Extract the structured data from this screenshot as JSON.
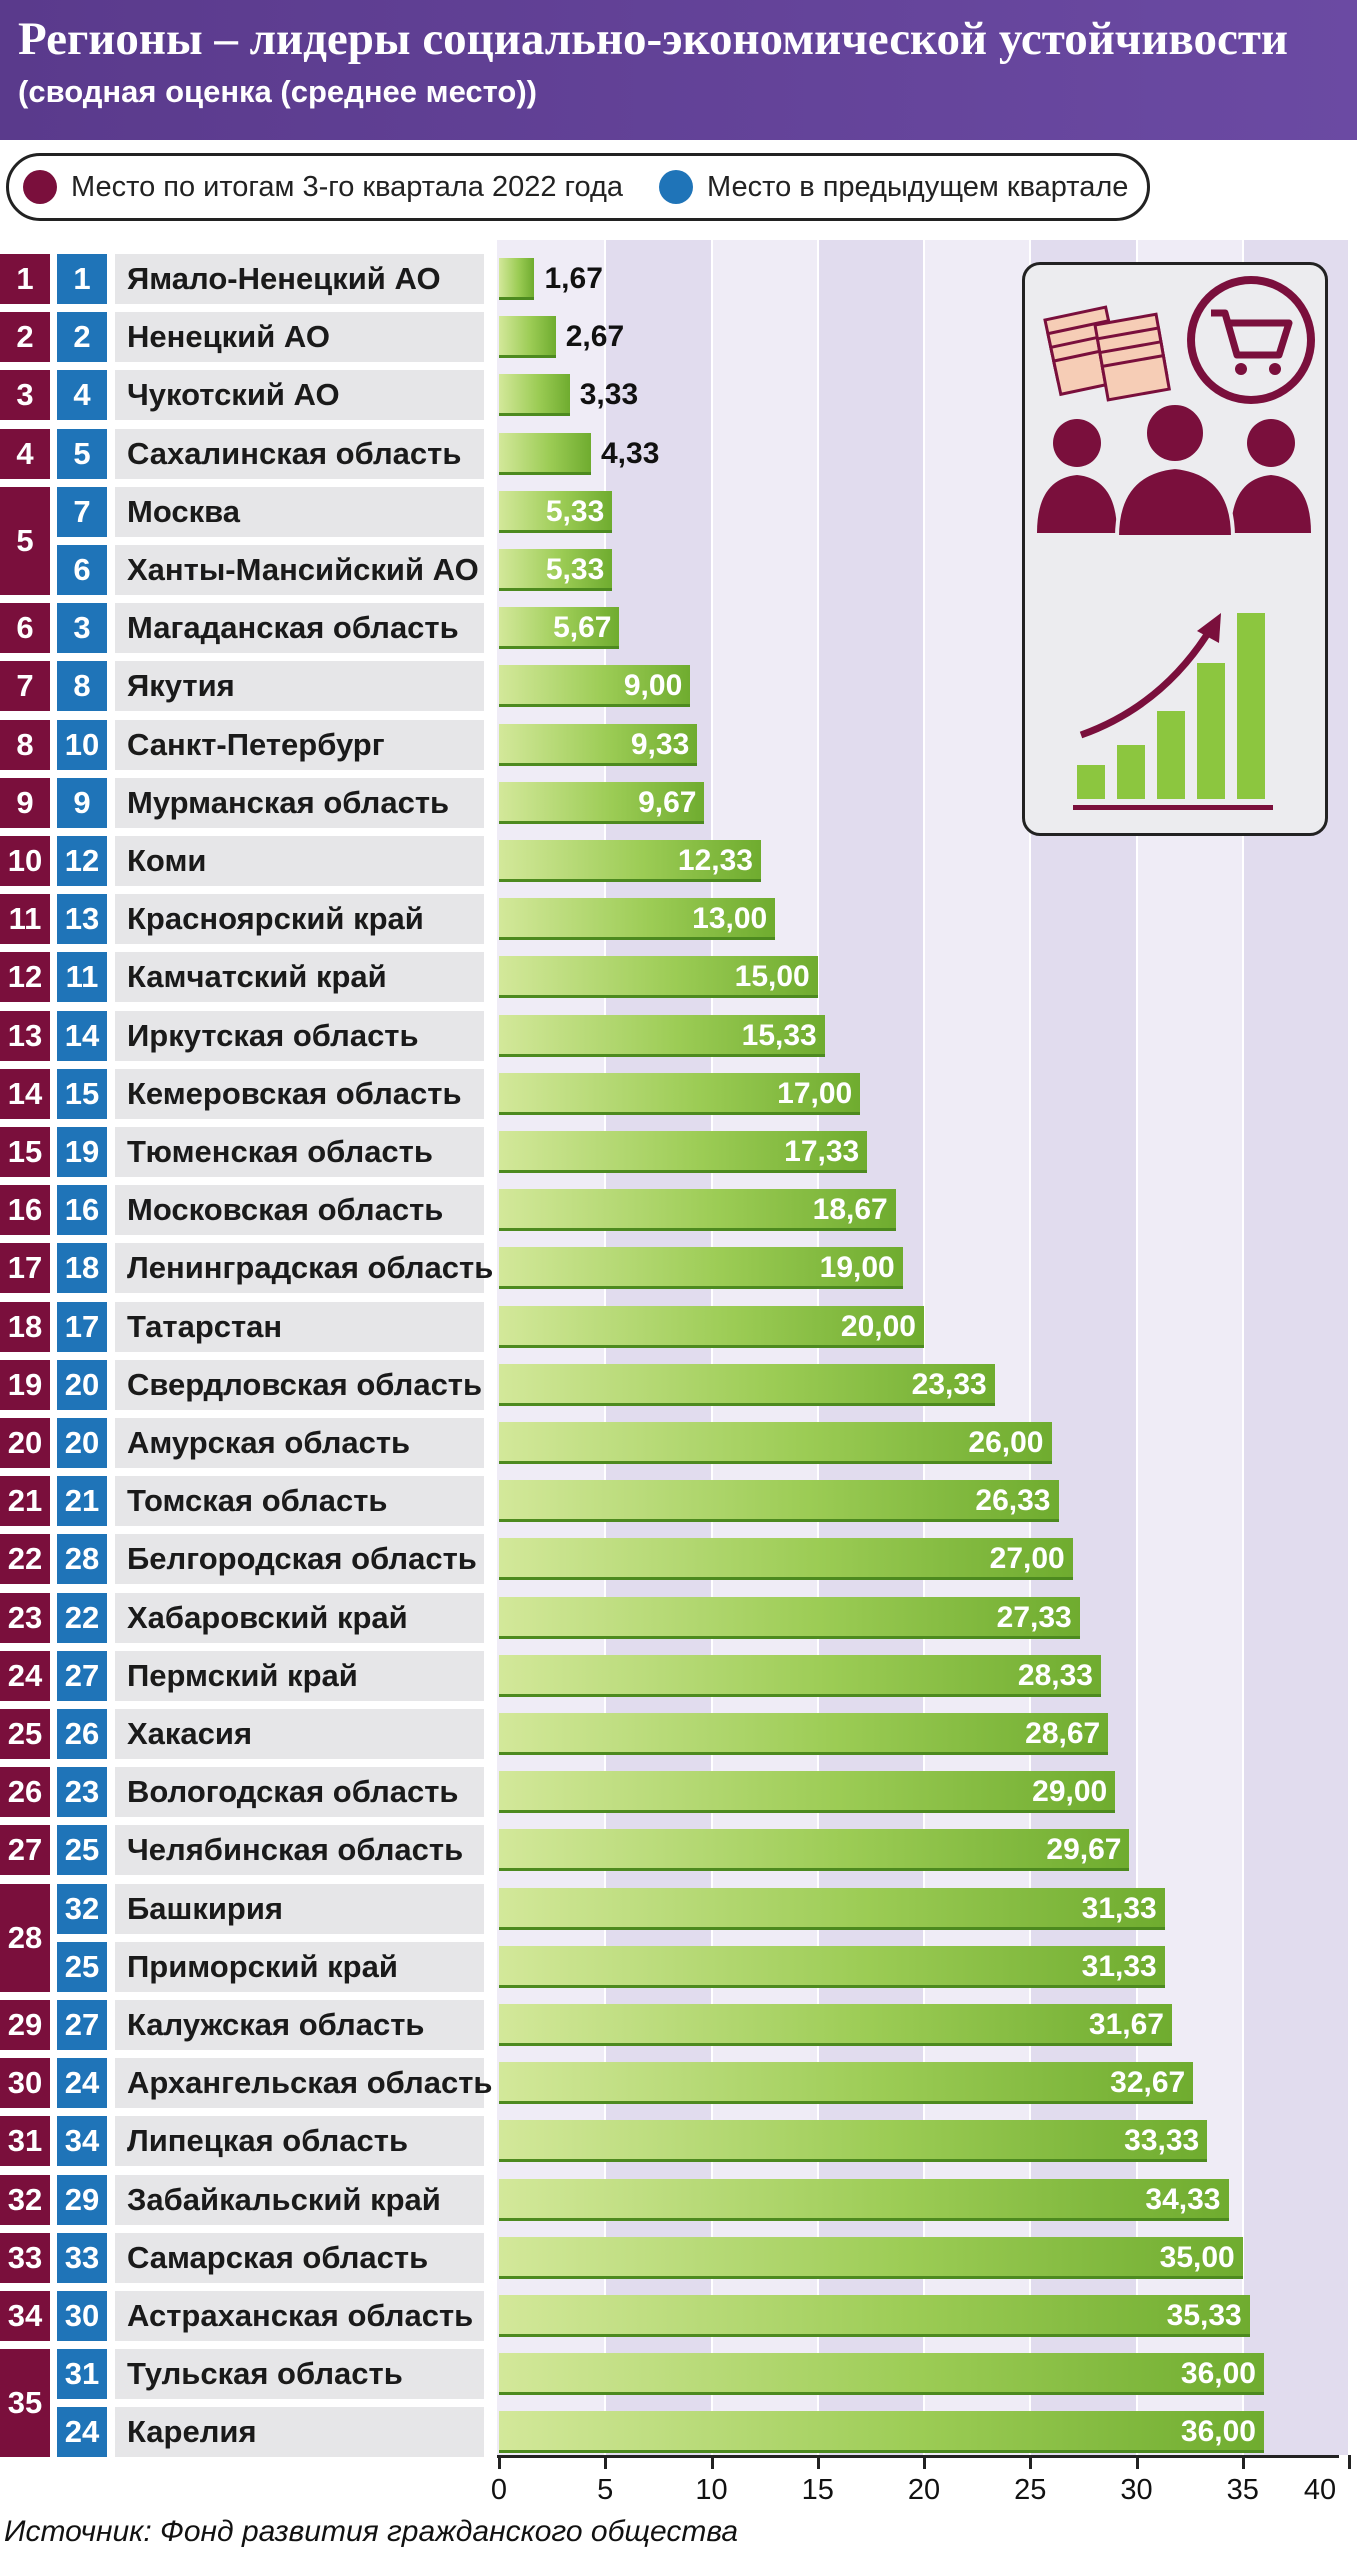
{
  "header": {
    "title": "Регионы – лидеры социально-экономической устойчивости",
    "subtitle": "(сводная оценка (среднее место))"
  },
  "legend": {
    "current": {
      "label": "Место по итогам 3-го квартала 2022 года",
      "color": "#7a0f3c"
    },
    "previous": {
      "label": "Место в предыдущем квартале",
      "color": "#1f74b8"
    }
  },
  "source": "Источник: Фонд развития гражданского общества",
  "icons": [
    "money-stack-icon",
    "shopping-cart-icon",
    "people-icon",
    "growth-chart-icon"
  ],
  "colors": {
    "bar_light": "#d3e89a",
    "bar_dark": "#6fac2f",
    "current_rank": "#7a0f3c",
    "previous_rank": "#1f74b8",
    "plot_bg": "#efecf6"
  },
  "chart_data": {
    "type": "bar",
    "orientation": "horizontal",
    "xlim": [
      0,
      40
    ],
    "xticks": [
      "0",
      "5",
      "10",
      "15",
      "20",
      "25",
      "30",
      "35",
      "40"
    ],
    "rows": [
      {
        "cur": "1",
        "prev": "1",
        "name": "Ямало-Ненецкий АО",
        "value": 1.67,
        "label": "1,67"
      },
      {
        "cur": "2",
        "prev": "2",
        "name": "Ненецкий АО",
        "value": 2.67,
        "label": "2,67"
      },
      {
        "cur": "3",
        "prev": "4",
        "name": "Чукотский АО",
        "value": 3.33,
        "label": "3,33"
      },
      {
        "cur": "4",
        "prev": "5",
        "name": "Сахалинская область",
        "value": 4.33,
        "label": "4,33"
      },
      {
        "cur": "5",
        "prev": "7",
        "name": "Москва",
        "value": 5.33,
        "label": "5,33"
      },
      {
        "cur": "5",
        "prev": "6",
        "name": "Ханты-Мансийский АО",
        "value": 5.33,
        "label": "5,33"
      },
      {
        "cur": "6",
        "prev": "3",
        "name": "Магаданская область",
        "value": 5.67,
        "label": "5,67"
      },
      {
        "cur": "7",
        "prev": "8",
        "name": "Якутия",
        "value": 9.0,
        "label": "9,00"
      },
      {
        "cur": "8",
        "prev": "10",
        "name": "Санкт-Петербург",
        "value": 9.33,
        "label": "9,33"
      },
      {
        "cur": "9",
        "prev": "9",
        "name": "Мурманская область",
        "value": 9.67,
        "label": "9,67"
      },
      {
        "cur": "10",
        "prev": "12",
        "name": "Коми",
        "value": 12.33,
        "label": "12,33"
      },
      {
        "cur": "11",
        "prev": "13",
        "name": "Красноярский край",
        "value": 13.0,
        "label": "13,00"
      },
      {
        "cur": "12",
        "prev": "11",
        "name": "Камчатский край",
        "value": 15.0,
        "label": "15,00"
      },
      {
        "cur": "13",
        "prev": "14",
        "name": "Иркутская область",
        "value": 15.33,
        "label": "15,33"
      },
      {
        "cur": "14",
        "prev": "15",
        "name": "Кемеровская область",
        "value": 17.0,
        "label": "17,00"
      },
      {
        "cur": "15",
        "prev": "19",
        "name": "Тюменская область",
        "value": 17.33,
        "label": "17,33"
      },
      {
        "cur": "16",
        "prev": "16",
        "name": "Московская область",
        "value": 18.67,
        "label": "18,67"
      },
      {
        "cur": "17",
        "prev": "18",
        "name": "Ленинградская область",
        "value": 19.0,
        "label": "19,00"
      },
      {
        "cur": "18",
        "prev": "17",
        "name": "Татарстан",
        "value": 20.0,
        "label": "20,00"
      },
      {
        "cur": "19",
        "prev": "20",
        "name": "Свердловская область",
        "value": 23.33,
        "label": "23,33"
      },
      {
        "cur": "20",
        "prev": "20",
        "name": "Амурская область",
        "value": 26.0,
        "label": "26,00"
      },
      {
        "cur": "21",
        "prev": "21",
        "name": "Томская область",
        "value": 26.33,
        "label": "26,33"
      },
      {
        "cur": "22",
        "prev": "28",
        "name": "Белгородская область",
        "value": 27.0,
        "label": "27,00"
      },
      {
        "cur": "23",
        "prev": "22",
        "name": "Хабаровский край",
        "value": 27.33,
        "label": "27,33"
      },
      {
        "cur": "24",
        "prev": "27",
        "name": "Пермский край",
        "value": 28.33,
        "label": "28,33"
      },
      {
        "cur": "25",
        "prev": "26",
        "name": "Хакасия",
        "value": 28.67,
        "label": "28,67"
      },
      {
        "cur": "26",
        "prev": "23",
        "name": "Вологодская область",
        "value": 29.0,
        "label": "29,00"
      },
      {
        "cur": "27",
        "prev": "25",
        "name": "Челябинская область",
        "value": 29.67,
        "label": "29,67"
      },
      {
        "cur": "28",
        "prev": "32",
        "name": "Башкирия",
        "value": 31.33,
        "label": "31,33"
      },
      {
        "cur": "28",
        "prev": "25",
        "name": "Приморский край",
        "value": 31.33,
        "label": "31,33"
      },
      {
        "cur": "29",
        "prev": "27",
        "name": "Калужская область",
        "value": 31.67,
        "label": "31,67"
      },
      {
        "cur": "30",
        "prev": "24",
        "name": "Архангельская область",
        "value": 32.67,
        "label": "32,67"
      },
      {
        "cur": "31",
        "prev": "34",
        "name": "Липецкая область",
        "value": 33.33,
        "label": "33,33"
      },
      {
        "cur": "32",
        "prev": "29",
        "name": "Забайкальский край",
        "value": 34.33,
        "label": "34,33"
      },
      {
        "cur": "33",
        "prev": "33",
        "name": "Самарская область",
        "value": 35.0,
        "label": "35,00"
      },
      {
        "cur": "34",
        "prev": "30",
        "name": "Астраханская область",
        "value": 35.33,
        "label": "35,33"
      },
      {
        "cur": "35",
        "prev": "31",
        "name": "Тульская область",
        "value": 36.0,
        "label": "36,00"
      },
      {
        "cur": "35",
        "prev": "24",
        "name": "Карелия",
        "value": 36.0,
        "label": "36,00"
      }
    ]
  }
}
